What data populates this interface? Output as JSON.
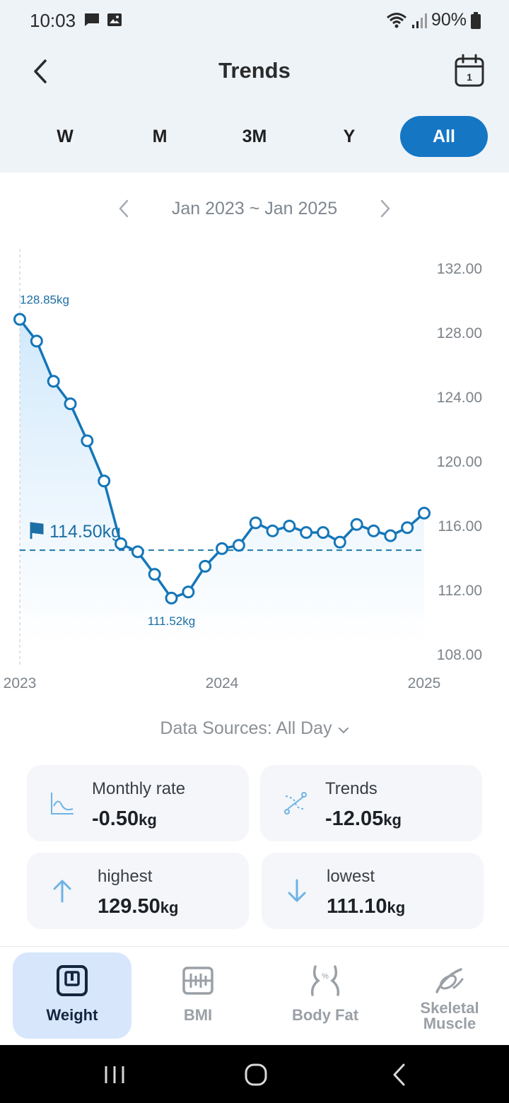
{
  "status_bar": {
    "time": "10:03",
    "battery": "90%"
  },
  "header": {
    "title": "Trends"
  },
  "range_tabs": [
    {
      "label": "W",
      "active": false
    },
    {
      "label": "M",
      "active": false
    },
    {
      "label": "3M",
      "active": false
    },
    {
      "label": "Y",
      "active": false
    },
    {
      "label": "All",
      "active": true
    }
  ],
  "period": {
    "label": "Jan 2023 ~ Jan 2025"
  },
  "chart_data": {
    "type": "line",
    "y_ticks": [
      "132.00",
      "128.00",
      "124.00",
      "120.00",
      "116.00",
      "112.00",
      "108.00"
    ],
    "ylim": [
      108,
      132
    ],
    "x_ticks": [
      "2023",
      "2024",
      "2025"
    ],
    "xlim": [
      "2023-01",
      "2025-01"
    ],
    "series": [
      {
        "color": "#1576b8",
        "x": [
          "2023-01",
          "2023-02",
          "2023-03",
          "2023-04",
          "2023-05",
          "2023-06",
          "2023-07",
          "2023-08",
          "2023-09",
          "2023-10",
          "2023-11",
          "2023-12",
          "2024-01",
          "2024-02",
          "2024-03",
          "2024-04",
          "2024-05",
          "2024-06",
          "2024-07",
          "2024-08",
          "2024-09",
          "2024-10",
          "2024-11",
          "2024-12",
          "2025-01"
        ],
        "values": [
          128.85,
          127.5,
          125.0,
          123.6,
          121.3,
          118.8,
          114.9,
          114.4,
          113.0,
          111.52,
          111.9,
          113.5,
          114.6,
          114.8,
          116.2,
          115.7,
          116.0,
          115.6,
          115.6,
          115.0,
          116.1,
          115.7,
          115.4,
          115.9,
          116.8
        ]
      }
    ],
    "annotations": [
      {
        "text": "128.85kg",
        "x": "2023-01",
        "y": 128.85
      },
      {
        "text": "111.52kg",
        "x": "2023-10",
        "y": 111.52
      }
    ],
    "target": {
      "value": 114.5,
      "label": "114.50kg"
    },
    "area_fill": true,
    "grid": false,
    "legend": "none"
  },
  "data_sources": {
    "label": "Data Sources: All Day"
  },
  "stats": [
    {
      "label": "Monthly rate",
      "value": "-0.50",
      "unit": "kg",
      "icon": "line-chart-icon"
    },
    {
      "label": "Trends",
      "value": "-12.05",
      "unit": "kg",
      "icon": "trend-path-icon"
    },
    {
      "label": "highest",
      "value": "129.50",
      "unit": "kg",
      "icon": "arrow-up-icon"
    },
    {
      "label": "lowest",
      "value": "111.10",
      "unit": "kg",
      "icon": "arrow-down-icon"
    }
  ],
  "bottom_nav": [
    {
      "label": "Weight",
      "active": true,
      "icon": "scale-icon"
    },
    {
      "label": "BMI",
      "active": false,
      "icon": "bmi-gauge-icon"
    },
    {
      "label": "Body Fat",
      "active": false,
      "icon": "body-fat-icon"
    },
    {
      "label": "Skeletal Muscle",
      "active": false,
      "icon": "muscle-icon"
    }
  ]
}
